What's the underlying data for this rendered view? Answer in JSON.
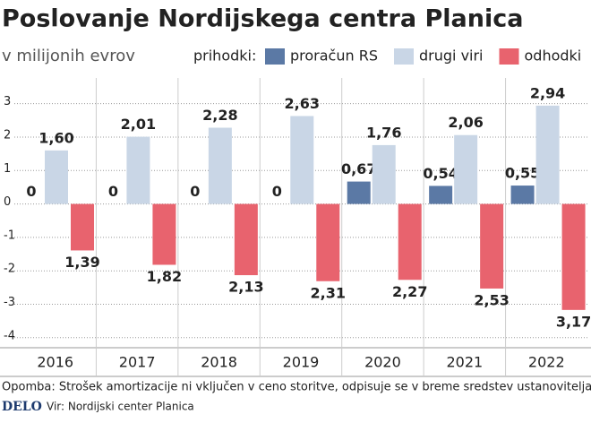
{
  "chart_data": {
    "type": "bar",
    "title": "Poslovanje Nordijskega centra Planica",
    "subtitle": "v milijonih evrov",
    "legend_title": "prihodki:",
    "categories": [
      "2016",
      "2017",
      "2018",
      "2019",
      "2020",
      "2021",
      "2022"
    ],
    "series": [
      {
        "name": "proračun RS",
        "color": "#5b79a5",
        "values": [
          0,
          0,
          0,
          0,
          0.67,
          0.54,
          0.55
        ],
        "value_labels": [
          "0",
          "0",
          "0",
          "0",
          "0,67",
          "0,54",
          "0,55"
        ]
      },
      {
        "name": "drugi viri",
        "color": "#c9d6e6",
        "values": [
          1.6,
          2.01,
          2.28,
          2.63,
          1.76,
          2.06,
          2.94
        ],
        "value_labels": [
          "1,60",
          "2,01",
          "2,28",
          "2,63",
          "1,76",
          "2,06",
          "2,94"
        ]
      },
      {
        "name": "odhodki",
        "color": "#e8636e",
        "values": [
          -1.39,
          -1.82,
          -2.13,
          -2.31,
          -2.27,
          -2.53,
          -3.17
        ],
        "value_labels": [
          "1,39",
          "1,82",
          "2,13",
          "2,31",
          "2,27",
          "2,53",
          "3,17"
        ]
      }
    ],
    "ylim": [
      -4.3,
      3.5
    ],
    "yticks": [
      3,
      2,
      1,
      0,
      -1,
      -2,
      -3,
      -4
    ],
    "grid": true,
    "note": "Opomba: Strošek amortizacije ni vključen v ceno storitve, odpisuje se v breme sredstev ustanovitelja (države).",
    "logo": "DELO",
    "source": "Vir: Nordijski center Planica"
  }
}
